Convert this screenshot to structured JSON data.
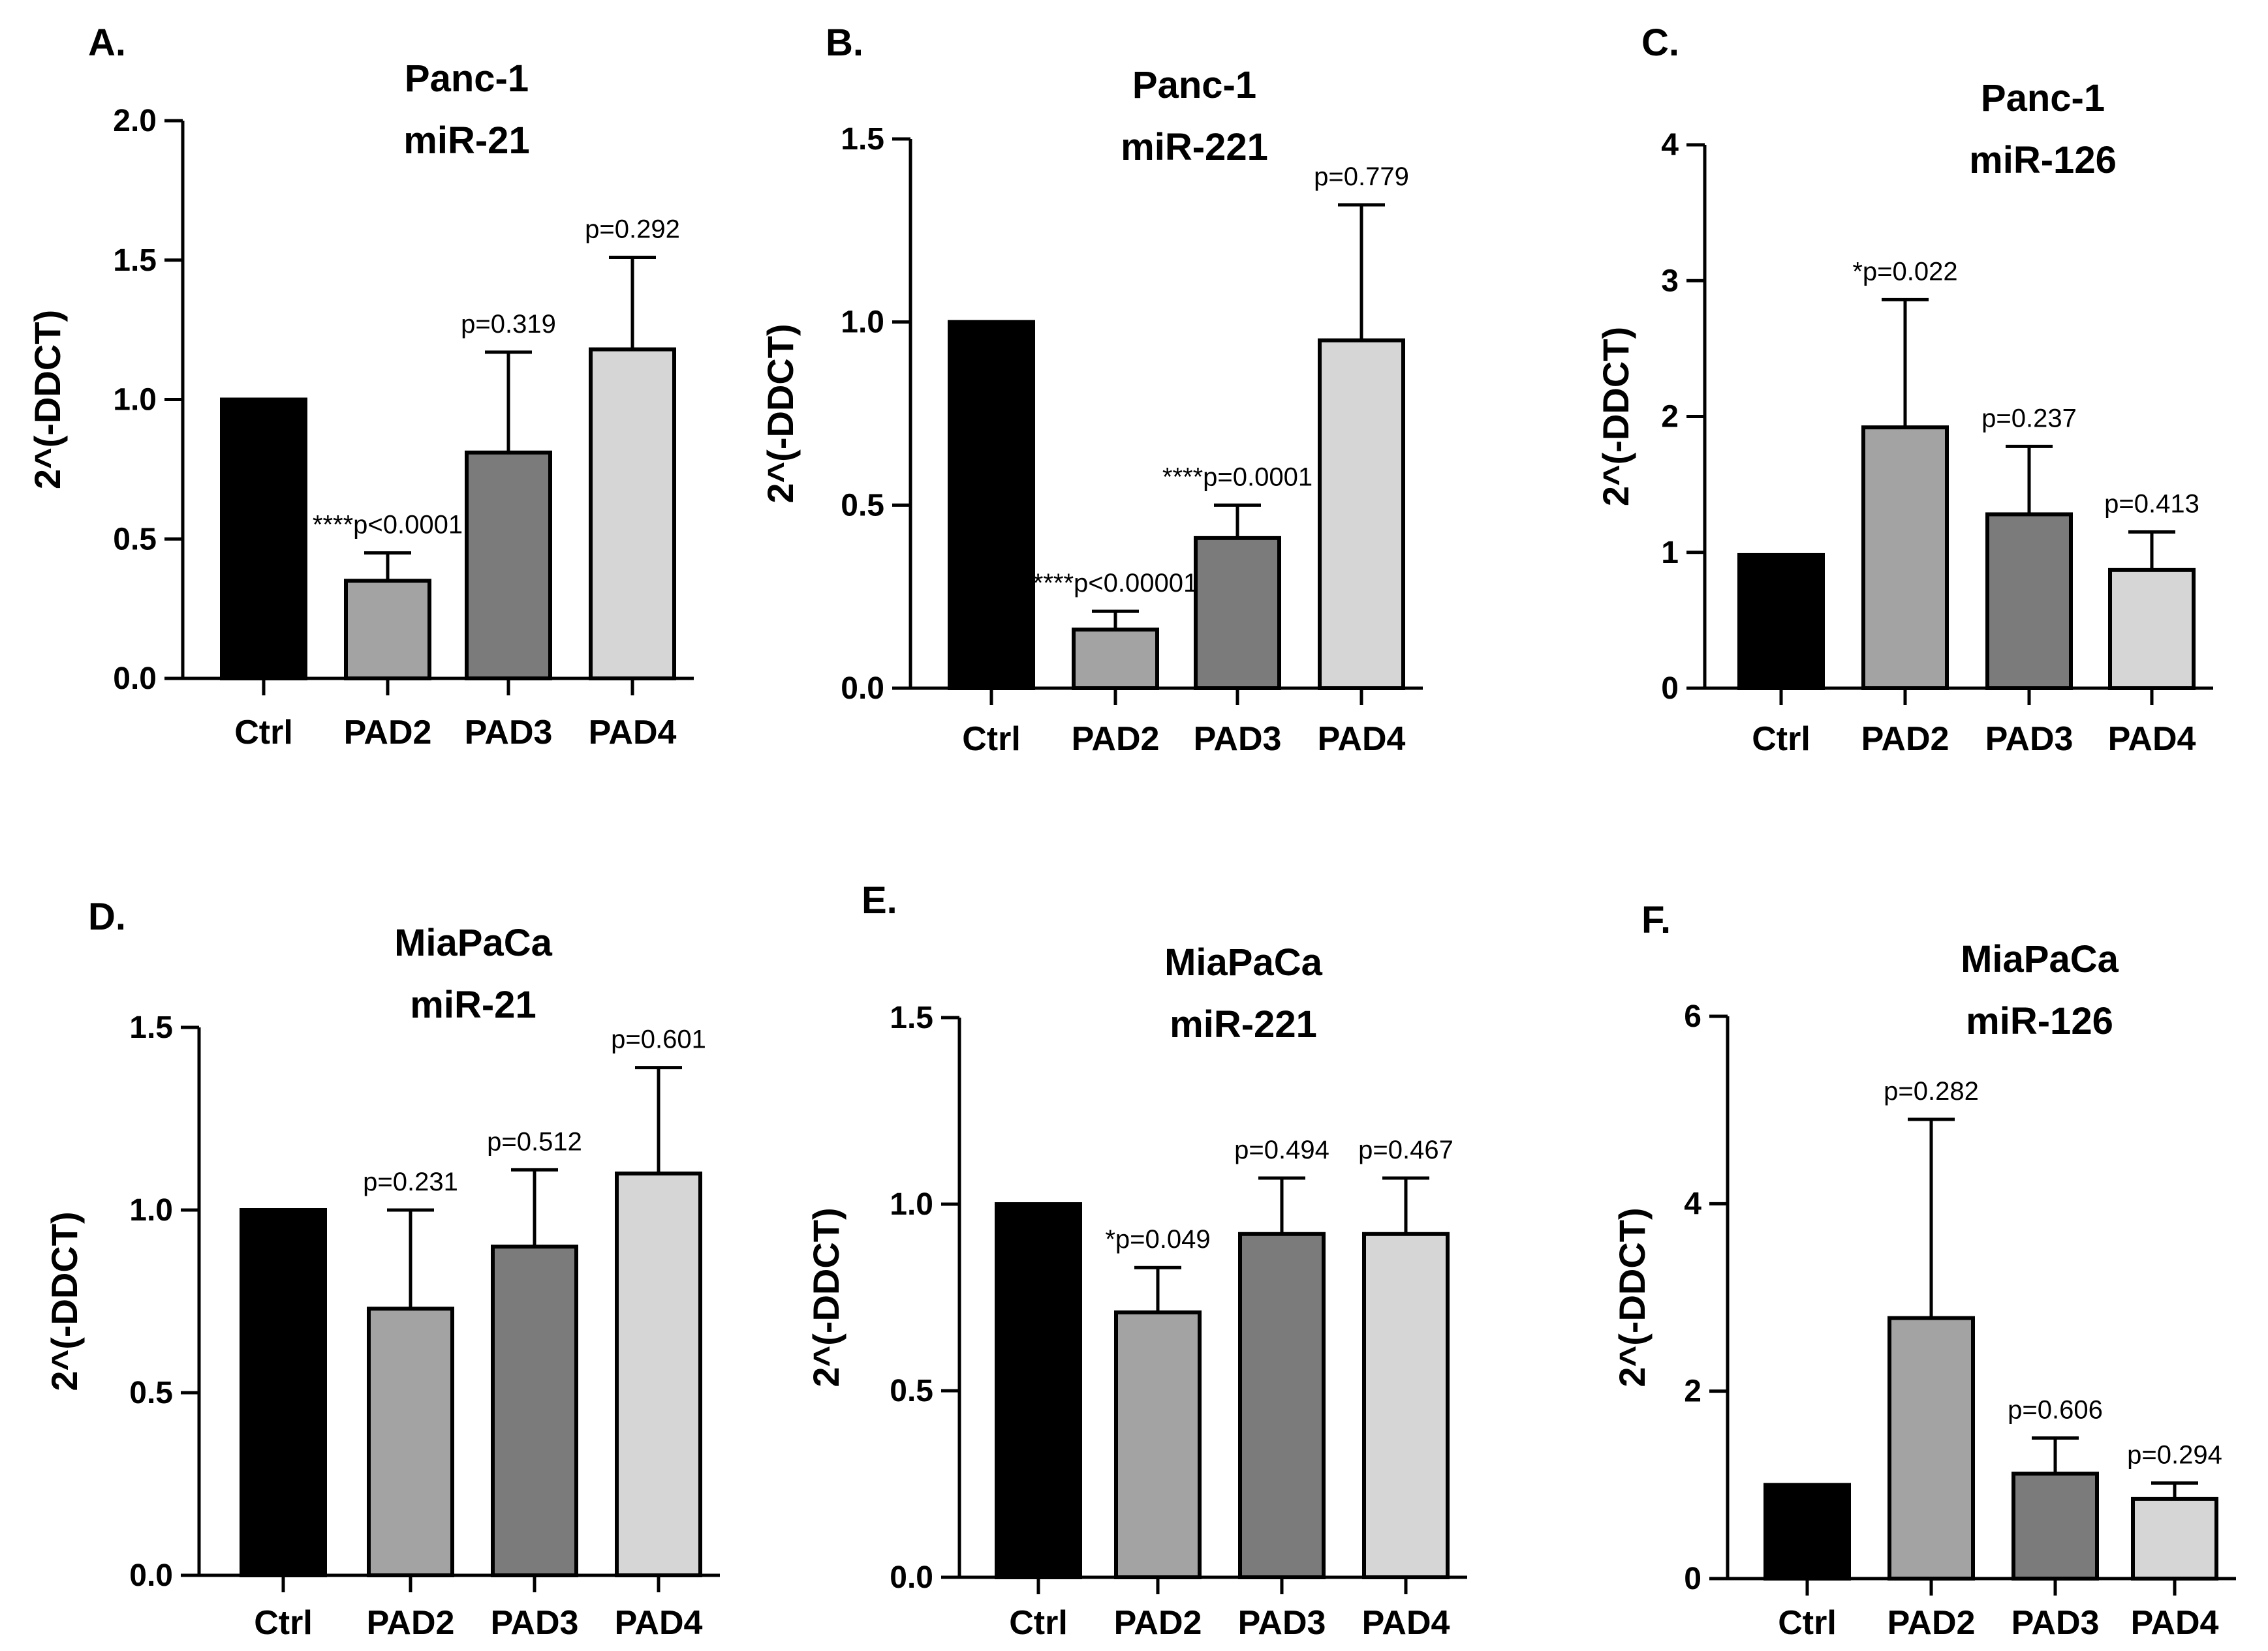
{
  "chart_data": [
    {
      "type": "bar",
      "panel": "A.",
      "title": [
        "Panc-1",
        "miR-21"
      ],
      "ylabel": "2^(-DDCT)",
      "xlabel": "",
      "categories": [
        "Ctrl",
        "PAD2",
        "PAD3",
        "PAD4"
      ],
      "values": [
        1.0,
        0.35,
        0.81,
        1.18
      ],
      "errors": [
        0,
        0.1,
        0.36,
        0.33
      ],
      "annotations": [
        "",
        "****p<0.0001",
        "p=0.319",
        "p=0.292"
      ],
      "ylim": [
        0,
        2.0
      ],
      "yticks": [
        0,
        0.5,
        1.0,
        1.5,
        2.0
      ],
      "ytick_labels": [
        "0.0",
        "0.5",
        "1.0",
        "1.5",
        "2.0"
      ],
      "colors": [
        "#000000",
        "#a3a3a3",
        "#7b7b7b",
        "#d6d6d6"
      ]
    },
    {
      "type": "bar",
      "panel": "B.",
      "title": [
        "Panc-1",
        "miR-221"
      ],
      "ylabel": "2^(-DDCT)",
      "xlabel": "",
      "categories": [
        "Ctrl",
        "PAD2",
        "PAD3",
        "PAD4"
      ],
      "values": [
        1.0,
        0.16,
        0.41,
        0.95
      ],
      "errors": [
        0,
        0.05,
        0.09,
        0.37
      ],
      "annotations": [
        "",
        "****p<0.00001",
        "****p=0.0001",
        "p=0.779"
      ],
      "ylim": [
        0,
        1.5
      ],
      "yticks": [
        0,
        0.5,
        1.0,
        1.5
      ],
      "ytick_labels": [
        "0.0",
        "0.5",
        "1.0",
        "1.5"
      ],
      "colors": [
        "#000000",
        "#a3a3a3",
        "#7b7b7b",
        "#d6d6d6"
      ]
    },
    {
      "type": "bar",
      "panel": "C.",
      "title": [
        "Panc-1",
        "miR-126"
      ],
      "ylabel": "2^(-DDCT)",
      "xlabel": "",
      "categories": [
        "Ctrl",
        "PAD2",
        "PAD3",
        "PAD4"
      ],
      "values": [
        0.98,
        1.92,
        1.28,
        0.87
      ],
      "errors": [
        0,
        0.94,
        0.5,
        0.28
      ],
      "annotations": [
        "",
        "*p=0.022",
        "p=0.237",
        "p=0.413"
      ],
      "ylim": [
        0,
        4
      ],
      "yticks": [
        0,
        1,
        2,
        3,
        4
      ],
      "ytick_labels": [
        "0",
        "1",
        "2",
        "3",
        "4"
      ],
      "colors": [
        "#000000",
        "#a3a3a3",
        "#7b7b7b",
        "#d6d6d6"
      ]
    },
    {
      "type": "bar",
      "panel": "D.",
      "title": [
        "MiaPaCa",
        "miR-21"
      ],
      "ylabel": "2^(-DDCT)",
      "xlabel": "",
      "categories": [
        "Ctrl",
        "PAD2",
        "PAD3",
        "PAD4"
      ],
      "values": [
        1.0,
        0.73,
        0.9,
        1.1
      ],
      "errors": [
        0,
        0.27,
        0.21,
        0.29
      ],
      "annotations": [
        "",
        "p=0.231",
        "p=0.512",
        "p=0.601"
      ],
      "ylim": [
        0,
        1.5
      ],
      "yticks": [
        0,
        0.5,
        1.0,
        1.5
      ],
      "ytick_labels": [
        "0.0",
        "0.5",
        "1.0",
        "1.5"
      ],
      "colors": [
        "#000000",
        "#a3a3a3",
        "#7b7b7b",
        "#d6d6d6"
      ]
    },
    {
      "type": "bar",
      "panel": "E.",
      "title": [
        "MiaPaCa",
        "miR-221"
      ],
      "ylabel": "2^(-DDCT)",
      "xlabel": "",
      "categories": [
        "Ctrl",
        "PAD2",
        "PAD3",
        "PAD4"
      ],
      "values": [
        1.0,
        0.71,
        0.92,
        0.92
      ],
      "errors": [
        0,
        0.12,
        0.15,
        0.15
      ],
      "annotations": [
        "",
        "*p=0.049",
        "p=0.494",
        "p=0.467"
      ],
      "ylim": [
        0,
        1.5
      ],
      "yticks": [
        0,
        0.5,
        1.0,
        1.5
      ],
      "ytick_labels": [
        "0.0",
        "0.5",
        "1.0",
        "1.5"
      ],
      "colors": [
        "#000000",
        "#a3a3a3",
        "#7b7b7b",
        "#d6d6d6"
      ]
    },
    {
      "type": "bar",
      "panel": "F.",
      "title": [
        "MiaPaCa",
        "miR-126"
      ],
      "ylabel": "2^(-DDCT)",
      "xlabel": "",
      "categories": [
        "Ctrl",
        "PAD2",
        "PAD3",
        "PAD4"
      ],
      "values": [
        1.0,
        2.78,
        1.12,
        0.85
      ],
      "errors": [
        0,
        2.12,
        0.38,
        0.17
      ],
      "annotations": [
        "",
        "p=0.282",
        "p=0.606",
        "p=0.294"
      ],
      "ylim": [
        0,
        6
      ],
      "yticks": [
        0,
        2,
        4,
        6
      ],
      "ytick_labels": [
        "0",
        "2",
        "4",
        "6"
      ],
      "colors": [
        "#000000",
        "#a3a3a3",
        "#7b7b7b",
        "#d6d6d6"
      ]
    }
  ]
}
